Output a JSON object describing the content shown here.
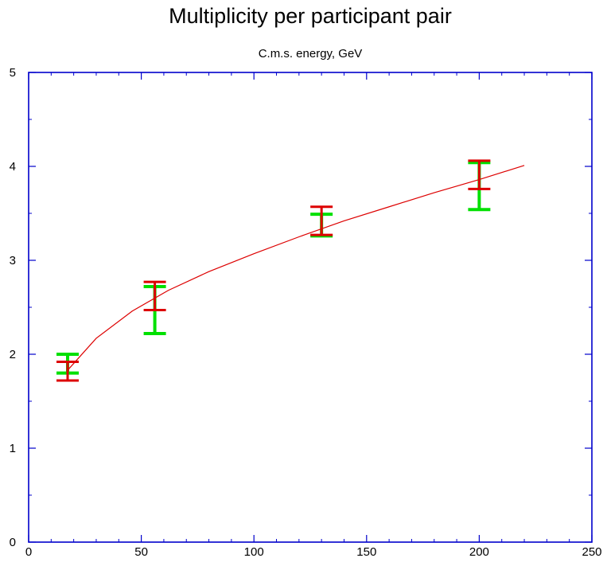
{
  "chart_data": {
    "type": "scatter",
    "title": "Multiplicity per participant pair",
    "subtitle": "C.m.s. energy, GeV",
    "xlabel": "",
    "ylabel": "",
    "xlim": [
      0,
      250
    ],
    "ylim": [
      0,
      5
    ],
    "x_ticks": [
      "0",
      "50",
      "100",
      "150",
      "200",
      "250"
    ],
    "y_ticks": [
      "0",
      "1",
      "2",
      "3",
      "4",
      "5"
    ],
    "x_tick_values": [
      0,
      50,
      100,
      150,
      200,
      250
    ],
    "y_tick_values": [
      0,
      1,
      2,
      3,
      4,
      5
    ],
    "grid": false,
    "colors": {
      "frame": "#0000cc",
      "green": "#00e000",
      "red": "#dd0000",
      "curve": "#ff0000"
    },
    "series": [
      {
        "type": "errorbar",
        "color": "green",
        "points": [
          {
            "x": 17.3,
            "low": 1.8,
            "high": 2.0
          },
          {
            "x": 56,
            "low": 2.22,
            "high": 2.72
          },
          {
            "x": 130,
            "low": 3.26,
            "high": 3.49
          },
          {
            "x": 200,
            "low": 3.54,
            "high": 4.04
          }
        ]
      },
      {
        "type": "errorbar",
        "color": "red",
        "points": [
          {
            "x": 17.3,
            "low": 1.72,
            "high": 1.92
          },
          {
            "x": 56,
            "low": 2.47,
            "high": 2.77
          },
          {
            "x": 130,
            "low": 3.27,
            "high": 3.57
          },
          {
            "x": 200,
            "low": 3.76,
            "high": 4.06
          }
        ]
      },
      {
        "type": "line",
        "color": "red",
        "x": [
          17.3,
          30,
          46,
          62,
          80,
          100,
          120,
          140,
          160,
          180,
          200,
          220
        ],
        "y": [
          1.83,
          2.17,
          2.46,
          2.68,
          2.88,
          3.07,
          3.25,
          3.42,
          3.57,
          3.72,
          3.86,
          4.01
        ]
      }
    ]
  }
}
